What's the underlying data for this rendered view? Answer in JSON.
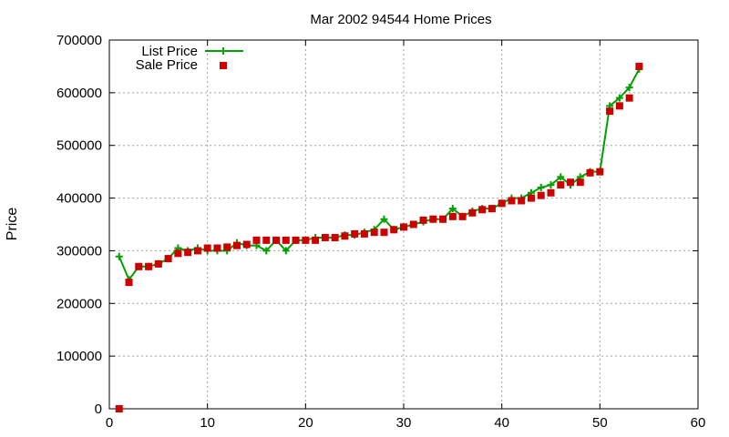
{
  "chart_data": {
    "type": "line",
    "title": "Mar 2002 94544 Home Prices",
    "xlabel": "",
    "ylabel": "Price",
    "xlim": [
      0,
      60
    ],
    "ylim": [
      0,
      700000
    ],
    "x_ticks": [
      "0",
      "10",
      "20",
      "30",
      "40",
      "50",
      "60"
    ],
    "y_ticks": [
      "0",
      "100000",
      "200000",
      "300000",
      "400000",
      "500000",
      "600000",
      "700000"
    ],
    "grid": true,
    "legend_position": "top-left",
    "series": [
      {
        "name": "List Price",
        "style": "line-with-plus-markers",
        "color": "#00a000",
        "x": [
          1,
          2,
          3,
          4,
          5,
          6,
          7,
          8,
          9,
          10,
          11,
          12,
          13,
          14,
          15,
          16,
          17,
          18,
          19,
          20,
          21,
          22,
          23,
          24,
          25,
          26,
          27,
          28,
          29,
          30,
          31,
          32,
          33,
          34,
          35,
          36,
          37,
          38,
          39,
          40,
          41,
          42,
          43,
          44,
          45,
          46,
          47,
          48,
          49,
          50,
          51,
          52,
          53,
          54
        ],
        "y": [
          289000,
          245000,
          270000,
          270000,
          275000,
          285000,
          305000,
          300000,
          305000,
          300000,
          300000,
          300000,
          315000,
          310000,
          310000,
          300000,
          320000,
          300000,
          320000,
          320000,
          325000,
          325000,
          325000,
          330000,
          330000,
          335000,
          340000,
          360000,
          340000,
          345000,
          350000,
          355000,
          360000,
          360000,
          380000,
          365000,
          375000,
          380000,
          380000,
          390000,
          400000,
          400000,
          410000,
          420000,
          425000,
          440000,
          425000,
          440000,
          450000,
          450000,
          575000,
          590000,
          610000,
          645000
        ]
      },
      {
        "name": "Sale Price",
        "style": "square-markers",
        "color": "#cc0000",
        "x": [
          1,
          2,
          3,
          4,
          5,
          6,
          7,
          8,
          9,
          10,
          11,
          12,
          13,
          14,
          15,
          16,
          17,
          18,
          19,
          20,
          21,
          22,
          23,
          24,
          25,
          26,
          27,
          28,
          29,
          30,
          31,
          32,
          33,
          34,
          35,
          36,
          37,
          38,
          39,
          40,
          41,
          42,
          43,
          44,
          45,
          46,
          47,
          48,
          49,
          50,
          51,
          52,
          53,
          54
        ],
        "y": [
          0,
          240000,
          270000,
          270000,
          275000,
          285000,
          295000,
          297000,
          300000,
          305000,
          305000,
          307000,
          310000,
          312000,
          320000,
          320000,
          320000,
          320000,
          320000,
          320000,
          320000,
          325000,
          325000,
          328000,
          332000,
          332000,
          335000,
          335000,
          340000,
          345000,
          350000,
          358000,
          360000,
          360000,
          365000,
          365000,
          372000,
          378000,
          380000,
          390000,
          395000,
          395000,
          400000,
          405000,
          410000,
          425000,
          430000,
          430000,
          448000,
          450000,
          565000,
          575000,
          590000,
          650000
        ]
      }
    ]
  }
}
